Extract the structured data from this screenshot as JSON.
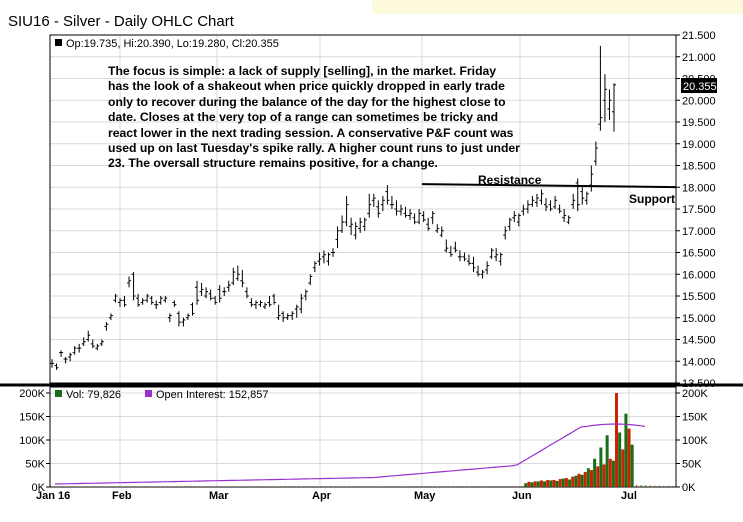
{
  "header": {
    "title": "SIU16 - Silver - Daily OHLC Chart",
    "price_legend": "Op:19.735, Hi:20.390, Lo:19.280, Cl:20.355",
    "last_price": "20.355"
  },
  "commentary": [
    "The focus is simple: a lack of supply [selling], in the market.  Friday",
    "has the look of a shakeout when price quickly dropped in early trade",
    "only to recover during the balance of the day for the highest close to",
    "date. Closes at the very top of a range can sometimes be tricky and",
    "react lower in the next trading session.  A conservative P&F count was",
    "used up on last Tuesday's spike rally.  A higher count runs to just under",
    "23.  The oversall structure remains positive, for a change."
  ],
  "annotations": {
    "resistance": "Resistance",
    "support": "Support"
  },
  "colors": {
    "price": "#000000",
    "volume_up": "#1a6e1a",
    "volume_down": "#cc2200",
    "open_interest": "#9933cc"
  },
  "chart_data": {
    "type": "ohlc",
    "x_tick_labels": [
      "Jan 16",
      "Feb",
      "Mar",
      "Apr",
      "May",
      "Jun",
      "Jul"
    ],
    "price_axis": {
      "range": [
        13.5,
        21.5
      ],
      "ticks": [
        "13.500",
        "14.000",
        "14.500",
        "15.000",
        "15.500",
        "16.000",
        "16.500",
        "17.000",
        "17.500",
        "18.000",
        "18.500",
        "19.000",
        "19.500",
        "20.000",
        "20.500",
        "21.000",
        "21.500"
      ]
    },
    "volume_axis": {
      "range": [
        0,
        200000
      ],
      "right_ticks": [
        "0K",
        "50K",
        "100K",
        "150K",
        "200K"
      ],
      "left_ticks": [
        "0K",
        "50K",
        "100K",
        "150K",
        "200K"
      ]
    },
    "resistance_level": 18.05,
    "ohlc": [
      [
        13.95,
        14.05,
        13.85,
        13.95
      ],
      [
        13.9,
        13.95,
        13.8,
        13.85
      ],
      [
        14.2,
        14.25,
        14.1,
        14.2
      ],
      [
        14.05,
        14.1,
        13.95,
        14.05
      ],
      [
        14.1,
        14.2,
        14.0,
        14.15
      ],
      [
        14.2,
        14.35,
        14.15,
        14.3
      ],
      [
        14.3,
        14.4,
        14.2,
        14.3
      ],
      [
        14.4,
        14.55,
        14.35,
        14.45
      ],
      [
        14.5,
        14.7,
        14.45,
        14.6
      ],
      [
        14.4,
        14.5,
        14.3,
        14.35
      ],
      [
        14.3,
        14.4,
        14.25,
        14.35
      ],
      [
        14.4,
        14.5,
        14.35,
        14.45
      ],
      [
        14.8,
        14.9,
        14.7,
        14.85
      ],
      [
        15.0,
        15.1,
        14.95,
        15.05
      ],
      [
        15.4,
        15.55,
        15.35,
        15.5
      ],
      [
        15.35,
        15.45,
        15.25,
        15.4
      ],
      [
        15.4,
        15.5,
        15.25,
        15.3
      ],
      [
        15.8,
        15.95,
        15.7,
        15.85
      ],
      [
        16.0,
        16.05,
        15.4,
        15.5
      ],
      [
        15.45,
        15.55,
        15.25,
        15.3
      ],
      [
        15.35,
        15.45,
        15.3,
        15.4
      ],
      [
        15.4,
        15.55,
        15.35,
        15.5
      ],
      [
        15.45,
        15.5,
        15.3,
        15.35
      ],
      [
        15.3,
        15.4,
        15.2,
        15.3
      ],
      [
        15.35,
        15.5,
        15.3,
        15.45
      ],
      [
        15.4,
        15.5,
        15.35,
        15.45
      ],
      [
        15.0,
        15.1,
        14.9,
        15.05
      ],
      [
        15.35,
        15.4,
        15.25,
        15.3
      ],
      [
        15.1,
        15.15,
        14.8,
        14.9
      ],
      [
        14.9,
        15.0,
        14.8,
        14.95
      ],
      [
        15.0,
        15.1,
        14.95,
        15.05
      ],
      [
        15.3,
        15.35,
        15.05,
        15.1
      ],
      [
        15.7,
        15.85,
        15.3,
        15.4
      ],
      [
        15.6,
        15.8,
        15.5,
        15.65
      ],
      [
        15.5,
        15.7,
        15.45,
        15.6
      ],
      [
        15.55,
        15.65,
        15.4,
        15.45
      ],
      [
        15.45,
        15.5,
        15.3,
        15.35
      ],
      [
        15.65,
        15.75,
        15.35,
        15.45
      ],
      [
        15.6,
        15.7,
        15.5,
        15.6
      ],
      [
        15.7,
        15.85,
        15.6,
        15.75
      ],
      [
        15.8,
        16.15,
        15.75,
        16.05
      ],
      [
        15.9,
        16.2,
        15.85,
        16.0
      ],
      [
        15.85,
        16.1,
        15.7,
        15.8
      ],
      [
        15.6,
        15.7,
        15.45,
        15.5
      ],
      [
        15.35,
        15.45,
        15.25,
        15.3
      ],
      [
        15.3,
        15.4,
        15.2,
        15.35
      ],
      [
        15.3,
        15.4,
        15.25,
        15.35
      ],
      [
        15.25,
        15.35,
        15.2,
        15.3
      ],
      [
        15.35,
        15.5,
        15.25,
        15.3
      ],
      [
        15.5,
        15.55,
        15.3,
        15.35
      ],
      [
        15.0,
        15.3,
        14.95,
        15.05
      ],
      [
        15.1,
        15.15,
        14.9,
        15.0
      ],
      [
        15.0,
        15.1,
        14.95,
        15.05
      ],
      [
        15.05,
        15.15,
        14.95,
        15.1
      ],
      [
        15.2,
        15.3,
        15.0,
        15.25
      ],
      [
        15.2,
        15.55,
        15.1,
        15.45
      ],
      [
        15.5,
        15.65,
        15.4,
        15.6
      ],
      [
        15.8,
        16.0,
        15.75,
        15.95
      ],
      [
        16.15,
        16.3,
        16.05,
        16.25
      ],
      [
        16.3,
        16.5,
        16.2,
        16.35
      ],
      [
        16.4,
        16.55,
        16.25,
        16.45
      ],
      [
        16.3,
        16.5,
        16.2,
        16.45
      ],
      [
        16.5,
        16.6,
        16.4,
        16.5
      ],
      [
        16.8,
        17.1,
        16.6,
        17.0
      ],
      [
        17.0,
        17.35,
        16.95,
        17.2
      ],
      [
        17.2,
        17.8,
        17.1,
        17.6
      ],
      [
        17.1,
        17.3,
        16.9,
        17.15
      ],
      [
        16.9,
        17.2,
        16.8,
        17.1
      ],
      [
        17.05,
        17.3,
        16.95,
        17.2
      ],
      [
        17.1,
        17.3,
        17.0,
        17.25
      ],
      [
        17.4,
        17.85,
        17.3,
        17.6
      ],
      [
        17.7,
        17.85,
        17.55,
        17.75
      ],
      [
        17.55,
        17.7,
        17.3,
        17.4
      ],
      [
        17.6,
        17.8,
        17.45,
        17.7
      ],
      [
        17.9,
        18.05,
        17.6,
        17.7
      ],
      [
        17.6,
        17.8,
        17.5,
        17.6
      ],
      [
        17.5,
        17.7,
        17.35,
        17.45
      ],
      [
        17.45,
        17.6,
        17.35,
        17.5
      ],
      [
        17.4,
        17.55,
        17.3,
        17.35
      ],
      [
        17.35,
        17.5,
        17.25,
        17.4
      ],
      [
        17.3,
        17.4,
        17.15,
        17.2
      ],
      [
        17.2,
        17.5,
        17.15,
        17.4
      ],
      [
        17.35,
        17.45,
        17.2,
        17.25
      ],
      [
        17.15,
        17.3,
        17.0,
        17.05
      ],
      [
        17.3,
        17.45,
        17.15,
        17.4
      ],
      [
        17.0,
        17.15,
        16.95,
        17.05
      ],
      [
        16.9,
        17.1,
        16.85,
        17.0
      ],
      [
        16.55,
        16.8,
        16.5,
        16.6
      ],
      [
        16.5,
        16.65,
        16.4,
        16.45
      ],
      [
        16.6,
        16.75,
        16.5,
        16.55
      ],
      [
        16.4,
        16.55,
        16.3,
        16.4
      ],
      [
        16.4,
        16.5,
        16.3,
        16.35
      ],
      [
        16.3,
        16.45,
        16.2,
        16.25
      ],
      [
        16.25,
        16.4,
        16.05,
        16.15
      ],
      [
        16.05,
        16.2,
        15.95,
        16.0
      ],
      [
        16.0,
        16.1,
        15.9,
        16.05
      ],
      [
        16.1,
        16.3,
        16.0,
        16.2
      ],
      [
        16.4,
        16.6,
        16.35,
        16.55
      ],
      [
        16.4,
        16.6,
        16.3,
        16.45
      ],
      [
        16.3,
        16.5,
        16.2,
        16.45
      ],
      [
        16.9,
        17.1,
        16.8,
        17.0
      ],
      [
        17.1,
        17.3,
        17.0,
        17.25
      ],
      [
        17.3,
        17.45,
        17.2,
        17.35
      ],
      [
        17.2,
        17.4,
        17.1,
        17.35
      ],
      [
        17.45,
        17.6,
        17.35,
        17.5
      ],
      [
        17.5,
        17.7,
        17.4,
        17.6
      ],
      [
        17.6,
        17.8,
        17.55,
        17.7
      ],
      [
        17.65,
        17.85,
        17.55,
        17.75
      ],
      [
        17.7,
        17.95,
        17.6,
        17.85
      ],
      [
        17.6,
        17.75,
        17.45,
        17.55
      ],
      [
        17.6,
        17.7,
        17.45,
        17.5
      ],
      [
        17.55,
        17.8,
        17.5,
        17.7
      ],
      [
        17.5,
        17.6,
        17.4,
        17.45
      ],
      [
        17.3,
        17.5,
        17.2,
        17.35
      ],
      [
        17.2,
        17.35,
        17.15,
        17.3
      ],
      [
        17.6,
        17.85,
        17.5,
        17.7
      ],
      [
        18.1,
        18.2,
        17.45,
        17.6
      ],
      [
        17.9,
        18.0,
        17.6,
        17.75
      ],
      [
        17.7,
        17.9,
        17.6,
        17.85
      ],
      [
        18.05,
        18.5,
        17.9,
        18.3
      ],
      [
        18.6,
        19.05,
        18.5,
        18.9
      ],
      [
        19.45,
        21.25,
        19.3,
        19.6
      ],
      [
        20.0,
        20.6,
        19.5,
        20.25
      ],
      [
        19.8,
        20.25,
        19.55,
        20.0
      ],
      [
        19.735,
        20.39,
        19.28,
        20.355
      ]
    ],
    "volume": {
      "legend": "Vol: 79,826",
      "values": [
        6,
        5,
        6,
        7,
        8,
        7,
        6,
        7,
        8,
        9,
        8,
        7,
        9,
        10,
        11,
        9,
        8,
        10,
        9,
        8,
        8,
        9,
        8,
        7,
        8,
        9,
        8,
        7,
        9,
        8,
        7,
        8,
        9,
        8,
        7,
        8,
        9,
        8,
        7,
        8,
        9,
        8,
        7,
        8,
        9,
        8,
        7,
        8,
        9,
        8,
        9,
        10,
        9,
        8,
        9,
        10,
        9,
        8,
        9,
        10,
        9,
        8,
        10,
        11,
        10,
        9,
        10,
        11,
        10,
        9,
        10,
        11,
        10,
        9,
        11,
        12,
        11,
        10,
        11,
        12,
        11,
        10,
        11,
        12,
        11,
        10,
        12,
        11,
        10,
        11,
        12,
        11,
        10,
        12,
        13,
        12,
        11,
        13,
        14,
        13,
        14,
        15,
        14,
        13,
        15,
        16,
        15,
        14,
        15,
        18,
        14,
        15,
        14,
        13,
        17,
        16,
        14,
        18,
        20,
        24,
        28,
        25,
        32,
        33,
        36,
        35,
        40,
        38,
        45,
        42,
        38,
        35,
        30,
        28,
        26,
        24,
        22,
        20,
        18,
        16
      ],
      "bars": [
        [
          0.76,
          0.04
        ],
        [
          0.765,
          0.055
        ],
        [
          0.77,
          0.05
        ],
        [
          0.775,
          0.06
        ],
        [
          0.78,
          0.06
        ],
        [
          0.785,
          0.07
        ],
        [
          0.79,
          0.06
        ],
        [
          0.795,
          0.075
        ],
        [
          0.8,
          0.07
        ],
        [
          0.805,
          0.075
        ],
        [
          0.81,
          0.065
        ],
        [
          0.815,
          0.085
        ],
        [
          0.82,
          0.09
        ],
        [
          0.825,
          0.095
        ],
        [
          0.83,
          0.08
        ],
        [
          0.835,
          0.11
        ],
        [
          0.84,
          0.12
        ],
        [
          0.845,
          0.14
        ],
        [
          0.85,
          0.13
        ],
        [
          0.855,
          0.16
        ],
        [
          0.86,
          0.2
        ],
        [
          0.865,
          0.18
        ],
        [
          0.87,
          0.3
        ],
        [
          0.875,
          0.22
        ],
        [
          0.88,
          0.42
        ],
        [
          0.885,
          0.24
        ],
        [
          0.89,
          0.55
        ],
        [
          0.895,
          0.3
        ],
        [
          0.9,
          0.28
        ],
        [
          0.905,
          1.0
        ],
        [
          0.91,
          0.58
        ],
        [
          0.915,
          0.4
        ],
        [
          0.92,
          0.78
        ],
        [
          0.925,
          0.62
        ],
        [
          0.93,
          0.45
        ]
      ]
    },
    "open_interest": {
      "legend": "Open Interest: 152,857"
    }
  }
}
